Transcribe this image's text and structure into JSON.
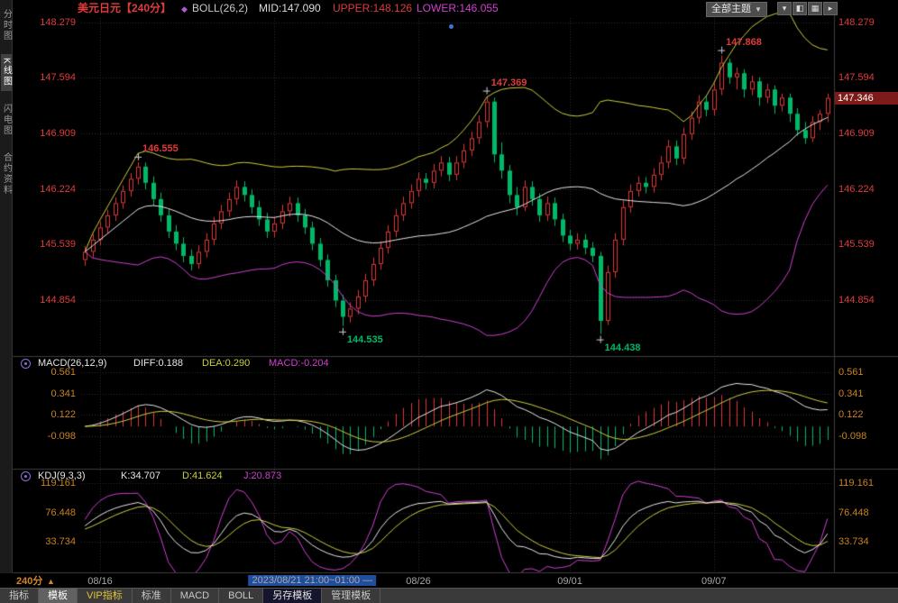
{
  "header": {
    "title": "美元日元【240分】",
    "boll_label": "BOLL(26,2)",
    "boll_mid": "MID:147.090",
    "boll_upper": "UPPER:148.126",
    "boll_lower": "LOWER:146.055",
    "theme_button": "全部主题",
    "window_buttons": [
      {
        "name": "dropdown-button",
        "glyph": "▾"
      },
      {
        "name": "layout-left-button",
        "glyph": "◧"
      },
      {
        "name": "layout-grid-button",
        "glyph": "▦"
      },
      {
        "name": "expand-button",
        "glyph": "▸"
      }
    ]
  },
  "sidebar": {
    "items": [
      {
        "label": "分时图",
        "key": "timeshare",
        "active": false
      },
      {
        "label": "K线图",
        "key": "kline",
        "active": true
      },
      {
        "label": "闪电图",
        "key": "flash",
        "active": false
      },
      {
        "label": "合约资料",
        "key": "contract-info",
        "active": false
      }
    ]
  },
  "macd_header": {
    "name": "MACD(26,12,9)",
    "diff": "DIFF:0.188",
    "dea": "DEA:0.290",
    "macd": "MACD:-0.204"
  },
  "kdj_header": {
    "name": "KDJ(9,3,3)",
    "k": "K:34.707",
    "d": "D:41.624",
    "j": "J:20.873"
  },
  "time_axis": {
    "period": "240分",
    "arrow": "▲"
  },
  "toolbar": {
    "tabs": [
      {
        "label": "指标",
        "key": "indicator"
      },
      {
        "label": "模板",
        "key": "template",
        "active": true
      },
      {
        "label": "VIP指标",
        "key": "vip-indicator",
        "vip": true
      },
      {
        "label": "标准",
        "key": "standard"
      },
      {
        "label": "MACD",
        "key": "macd"
      },
      {
        "label": "BOLL",
        "key": "boll"
      },
      {
        "label": "另存模板",
        "key": "save-template",
        "pressed": true
      },
      {
        "label": "管理模板",
        "key": "manage-template"
      }
    ]
  },
  "colors": {
    "up": "#df3838",
    "down": "#00b868",
    "boll_upper": "#cdcd3f",
    "boll_mid": "#e6e6e6",
    "boll_lower": "#d23fd2",
    "axis_red": "#df3b3b",
    "axis_orange": "#c9821f",
    "grid": "#2e2e2e",
    "divider": "#3c3c3c",
    "cross": "#cfcfcf",
    "highlight_bg": "#1f4e9c"
  },
  "chart_data": {
    "type": "candlestick",
    "symbol": "美元日元",
    "period": "240分",
    "indicators": [
      "BOLL(26,2)",
      "MACD(26,12,9)",
      "KDJ(9,3,3)"
    ],
    "indicator_values": {
      "BOLL": {
        "MID": 147.09,
        "UPPER": 148.126,
        "LOWER": 146.055
      },
      "MACD": {
        "DIFF": 0.188,
        "DEA": 0.29,
        "MACD": -0.204
      },
      "KDJ": {
        "K": 34.707,
        "D": 41.624,
        "J": 20.873
      }
    },
    "current_price": 147.346,
    "y_ticks_main": [
      148.279,
      147.594,
      146.909,
      146.224,
      145.539,
      144.854
    ],
    "macd_ticks": [
      0.561,
      0.341,
      0.122,
      -0.098
    ],
    "kdj_ticks": [
      119.161,
      76.448,
      33.734
    ],
    "gridlines": [
      2,
      25,
      44,
      64,
      83
    ],
    "x_labels": [
      {
        "index": 2,
        "label": "08/16"
      },
      {
        "index": 30,
        "label": "2023/08/21 21:00~01:00 —",
        "highlight": true
      },
      {
        "index": 44,
        "label": "08/26"
      },
      {
        "index": 64,
        "label": "09/01"
      },
      {
        "index": 83,
        "label": "09/07"
      }
    ],
    "annotations": [
      {
        "index": 7,
        "price": 146.555,
        "text": "146.555",
        "kind": "high"
      },
      {
        "index": 34,
        "price": 144.535,
        "text": "144.535",
        "kind": "low"
      },
      {
        "index": 53,
        "price": 147.369,
        "text": "147.369",
        "kind": "high"
      },
      {
        "index": 68,
        "price": 144.438,
        "text": "144.438",
        "kind": "low"
      },
      {
        "index": 84,
        "price": 147.868,
        "text": "147.868",
        "kind": "high"
      }
    ],
    "candles": [
      [
        145.35,
        145.52,
        145.28,
        145.45
      ],
      [
        145.45,
        145.67,
        145.38,
        145.6
      ],
      [
        145.6,
        145.82,
        145.53,
        145.75
      ],
      [
        145.75,
        145.97,
        145.68,
        145.9
      ],
      [
        145.9,
        146.12,
        145.83,
        146.05
      ],
      [
        146.05,
        146.27,
        145.98,
        146.2
      ],
      [
        146.2,
        146.42,
        146.13,
        146.35
      ],
      [
        146.35,
        146.555,
        146.28,
        146.5
      ],
      [
        146.5,
        146.55,
        146.22,
        146.3
      ],
      [
        146.3,
        146.38,
        146.02,
        146.1
      ],
      [
        146.1,
        146.18,
        145.82,
        145.9
      ],
      [
        145.9,
        145.98,
        145.62,
        145.7
      ],
      [
        145.7,
        145.78,
        145.47,
        145.55
      ],
      [
        145.55,
        145.63,
        145.32,
        145.4
      ],
      [
        145.4,
        145.48,
        145.22,
        145.3
      ],
      [
        145.3,
        145.53,
        145.24,
        145.45
      ],
      [
        145.45,
        145.68,
        145.38,
        145.6
      ],
      [
        145.6,
        145.88,
        145.53,
        145.8
      ],
      [
        145.8,
        146.03,
        145.73,
        145.95
      ],
      [
        145.95,
        146.18,
        145.88,
        146.1
      ],
      [
        146.1,
        146.33,
        146.03,
        146.25
      ],
      [
        146.25,
        146.32,
        146.07,
        146.15
      ],
      [
        146.15,
        146.22,
        145.92,
        146.0
      ],
      [
        146.0,
        146.08,
        145.77,
        145.85
      ],
      [
        145.85,
        145.93,
        145.62,
        145.7
      ],
      [
        145.7,
        145.88,
        145.63,
        145.8
      ],
      [
        145.8,
        146.03,
        145.73,
        145.95
      ],
      [
        145.95,
        146.13,
        145.88,
        146.05
      ],
      [
        146.05,
        146.12,
        145.82,
        145.9
      ],
      [
        145.9,
        145.98,
        145.67,
        145.75
      ],
      [
        145.75,
        145.82,
        145.47,
        145.55
      ],
      [
        145.55,
        145.62,
        145.27,
        145.35
      ],
      [
        145.35,
        145.42,
        145.02,
        145.1
      ],
      [
        145.1,
        145.17,
        144.77,
        144.85
      ],
      [
        144.85,
        144.92,
        144.535,
        144.65
      ],
      [
        144.65,
        144.83,
        144.58,
        144.75
      ],
      [
        144.75,
        144.98,
        144.68,
        144.9
      ],
      [
        144.9,
        145.18,
        144.83,
        145.1
      ],
      [
        145.1,
        145.38,
        145.03,
        145.3
      ],
      [
        145.3,
        145.58,
        145.23,
        145.5
      ],
      [
        145.5,
        145.78,
        145.43,
        145.7
      ],
      [
        145.7,
        145.98,
        145.63,
        145.9
      ],
      [
        145.9,
        146.13,
        145.83,
        146.05
      ],
      [
        146.05,
        146.28,
        145.98,
        146.2
      ],
      [
        146.2,
        146.43,
        146.13,
        146.35
      ],
      [
        146.35,
        146.42,
        146.22,
        146.3
      ],
      [
        146.3,
        146.53,
        146.23,
        146.45
      ],
      [
        146.45,
        146.63,
        146.38,
        146.55
      ],
      [
        146.55,
        146.62,
        146.32,
        146.4
      ],
      [
        146.4,
        146.63,
        146.33,
        146.55
      ],
      [
        146.55,
        146.78,
        146.48,
        146.7
      ],
      [
        146.7,
        146.93,
        146.63,
        146.85
      ],
      [
        146.85,
        147.13,
        146.78,
        147.05
      ],
      [
        147.05,
        147.369,
        146.98,
        147.3
      ],
      [
        147.3,
        147.35,
        146.55,
        146.65
      ],
      [
        146.65,
        146.8,
        146.35,
        146.45
      ],
      [
        146.45,
        146.52,
        146.05,
        146.15
      ],
      [
        146.15,
        146.25,
        145.9,
        146.0
      ],
      [
        146.0,
        146.33,
        145.95,
        146.25
      ],
      [
        146.25,
        146.32,
        146.02,
        146.1
      ],
      [
        146.1,
        146.17,
        145.82,
        145.9
      ],
      [
        145.9,
        146.13,
        145.83,
        146.05
      ],
      [
        146.05,
        146.12,
        145.77,
        145.85
      ],
      [
        145.85,
        145.92,
        145.57,
        145.65
      ],
      [
        145.65,
        145.72,
        145.47,
        145.55
      ],
      [
        145.55,
        145.68,
        145.48,
        145.6
      ],
      [
        145.6,
        145.67,
        145.42,
        145.5
      ],
      [
        145.5,
        145.57,
        145.32,
        145.4
      ],
      [
        145.4,
        145.45,
        144.438,
        144.6
      ],
      [
        144.6,
        145.28,
        144.55,
        145.2
      ],
      [
        145.2,
        145.68,
        145.13,
        145.6
      ],
      [
        145.6,
        146.08,
        145.53,
        146.0
      ],
      [
        146.0,
        146.28,
        145.93,
        146.2
      ],
      [
        146.2,
        146.38,
        146.13,
        146.3
      ],
      [
        146.3,
        146.37,
        146.17,
        146.25
      ],
      [
        146.25,
        146.48,
        146.18,
        146.4
      ],
      [
        146.4,
        146.63,
        146.33,
        146.55
      ],
      [
        146.55,
        146.83,
        146.48,
        146.75
      ],
      [
        146.75,
        146.82,
        146.52,
        146.6
      ],
      [
        146.6,
        146.98,
        146.53,
        146.9
      ],
      [
        146.9,
        147.18,
        146.83,
        147.1
      ],
      [
        147.1,
        147.38,
        147.03,
        147.3
      ],
      [
        147.3,
        147.37,
        147.12,
        147.2
      ],
      [
        147.2,
        147.53,
        147.13,
        147.45
      ],
      [
        147.45,
        147.868,
        147.38,
        147.78
      ],
      [
        147.78,
        147.83,
        147.52,
        147.6
      ],
      [
        147.6,
        147.72,
        147.45,
        147.65
      ],
      [
        147.65,
        147.7,
        147.35,
        147.45
      ],
      [
        147.45,
        147.62,
        147.38,
        147.55
      ],
      [
        147.55,
        147.6,
        147.25,
        147.35
      ],
      [
        147.35,
        147.52,
        147.28,
        147.45
      ],
      [
        147.45,
        147.5,
        147.15,
        147.25
      ],
      [
        147.25,
        147.4,
        147.18,
        147.35
      ],
      [
        147.35,
        147.4,
        147.05,
        147.15
      ],
      [
        147.15,
        147.22,
        146.88,
        146.95
      ],
      [
        146.95,
        147.05,
        146.78,
        146.85
      ],
      [
        146.85,
        147.12,
        146.8,
        147.05
      ],
      [
        147.05,
        147.2,
        146.95,
        147.15
      ],
      [
        147.15,
        147.4,
        147.05,
        147.346
      ]
    ]
  }
}
